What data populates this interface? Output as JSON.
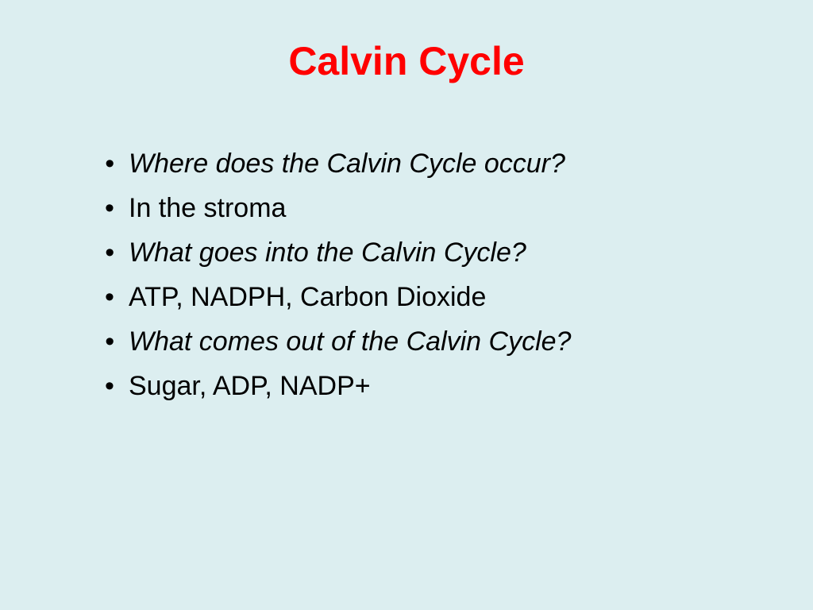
{
  "slide": {
    "title": "Calvin Cycle",
    "title_color": "#ff0000",
    "title_fontsize": 50,
    "background_color": "#dceef0",
    "text_color": "#000000",
    "body_fontsize": 34,
    "bullets": [
      {
        "text": "Where does the Calvin Cycle occur?",
        "italic": true
      },
      {
        "text": "In the stroma",
        "italic": false
      },
      {
        "text": "What goes into the Calvin Cycle?",
        "italic": true
      },
      {
        "text": "ATP, NADPH, Carbon Dioxide",
        "italic": false
      },
      {
        "text": "What comes out of the Calvin Cycle?",
        "italic": true
      },
      {
        "text": "Sugar, ADP, NADP+",
        "italic": false
      }
    ]
  }
}
